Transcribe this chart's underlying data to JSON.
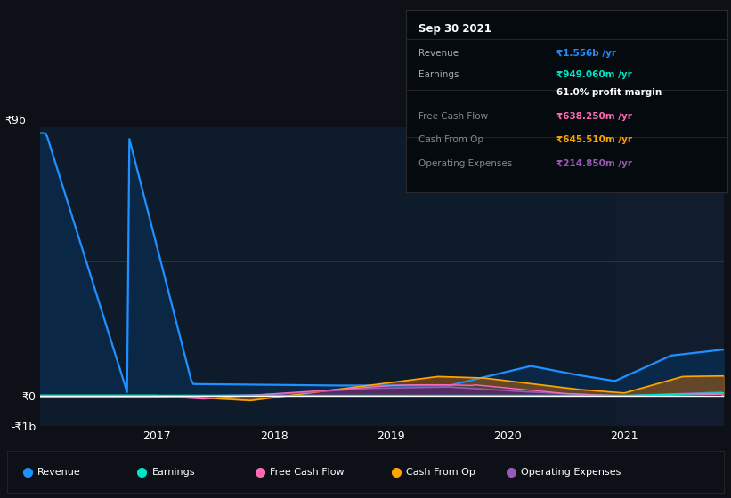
{
  "bg_color": "#0d1117",
  "plot_bg_color": "#0d1b2a",
  "plot_bg_highlight": "#111d2e",
  "grid_color": "#2a3a4a",
  "title": "Sep 30 2021",
  "ylim": [
    -1000000000,
    9000000000
  ],
  "revenue_color": "#1e90ff",
  "revenue_fill": "#0a2a4a",
  "earnings_color": "#00e5c8",
  "fcf_color": "#ff69b4",
  "cashop_color": "#ffa500",
  "opex_color": "#9b59b6",
  "legend": [
    {
      "label": "Revenue",
      "color": "#1e90ff"
    },
    {
      "label": "Earnings",
      "color": "#00e5c8"
    },
    {
      "label": "Free Cash Flow",
      "color": "#ff69b4"
    },
    {
      "label": "Cash From Op",
      "color": "#ffa500"
    },
    {
      "label": "Operating Expenses",
      "color": "#9b59b6"
    }
  ],
  "info_title": "Sep 30 2021",
  "info_rows": [
    {
      "label": "Revenue",
      "value": "₹1.556b /yr",
      "value_color": "#1e90ff",
      "label_color": "#aaaaaa"
    },
    {
      "label": "Earnings",
      "value": "₹949.060m /yr",
      "value_color": "#00e5c8",
      "label_color": "#aaaaaa"
    },
    {
      "label": "",
      "value": "61.0% profit margin",
      "value_color": "#ffffff",
      "label_color": "#aaaaaa"
    },
    {
      "label": "Free Cash Flow",
      "value": "₹638.250m /yr",
      "value_color": "#ff69b4",
      "label_color": "#888888"
    },
    {
      "label": "Cash From Op",
      "value": "₹645.510m /yr",
      "value_color": "#ffa500",
      "label_color": "#888888"
    },
    {
      "label": "Operating Expenses",
      "value": "₹214.850m /yr",
      "value_color": "#9b59b6",
      "label_color": "#888888"
    }
  ]
}
